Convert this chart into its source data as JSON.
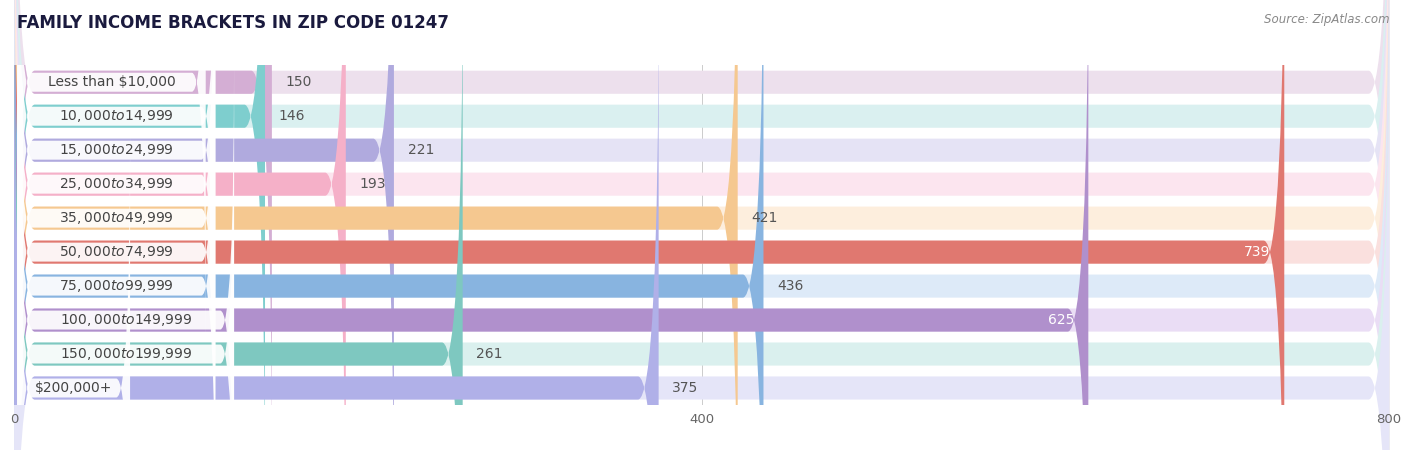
{
  "title": "FAMILY INCOME BRACKETS IN ZIP CODE 01247",
  "source": "Source: ZipAtlas.com",
  "categories": [
    "Less than $10,000",
    "$10,000 to $14,999",
    "$15,000 to $24,999",
    "$25,000 to $34,999",
    "$35,000 to $49,999",
    "$50,000 to $74,999",
    "$75,000 to $99,999",
    "$100,000 to $149,999",
    "$150,000 to $199,999",
    "$200,000+"
  ],
  "values": [
    150,
    146,
    221,
    193,
    421,
    739,
    436,
    625,
    261,
    375
  ],
  "bar_colors": [
    "#d4aed4",
    "#7ecece",
    "#b0aade",
    "#f5b0c8",
    "#f5c890",
    "#e07870",
    "#88b4e0",
    "#b090cc",
    "#7ec8c0",
    "#b0b0e8"
  ],
  "bar_bg_colors": [
    "#ede0ed",
    "#daf0f0",
    "#e5e3f5",
    "#fce5ef",
    "#fdeedd",
    "#fae0de",
    "#ddeaf8",
    "#eaddf5",
    "#daf0ee",
    "#e5e5f8"
  ],
  "xlim": [
    0,
    800
  ],
  "xticks": [
    0,
    400,
    800
  ],
  "title_fontsize": 12,
  "label_fontsize": 10,
  "value_fontsize": 10,
  "background_color": "#f5f5f5",
  "row_bg_color": "#f0f0f0",
  "inside_value_threshold": 500
}
